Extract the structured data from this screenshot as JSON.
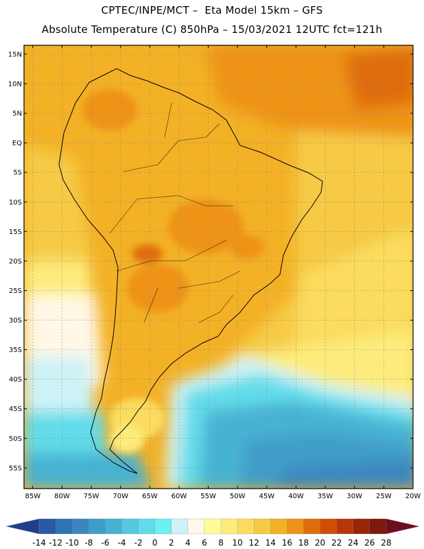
{
  "header": {
    "line1": "CPTEC/INPE/MCT –  Eta Model 15km – GFS",
    "line2": "Absolute Temperature (C) 850hPa – 15/03/2021 12UTC fct=121h"
  },
  "map": {
    "lat_labels": [
      "15N",
      "10N",
      "5N",
      "EQ",
      "5S",
      "10S",
      "15S",
      "20S",
      "25S",
      "30S",
      "35S",
      "40S",
      "45S",
      "50S",
      "55S"
    ],
    "lon_labels": [
      "85W",
      "80W",
      "75W",
      "70W",
      "65W",
      "60W",
      "55W",
      "50W",
      "45W",
      "40W",
      "35W",
      "30W",
      "25W",
      "20W"
    ],
    "lat_range": [
      -58.5,
      16.5
    ],
    "lon_range": [
      -86.5,
      -20
    ]
  },
  "colorbar": {
    "labels": [
      "-14",
      "-12",
      "-10",
      "-8",
      "-6",
      "-4",
      "-2",
      "0",
      "2",
      "4",
      "6",
      "8",
      "10",
      "12",
      "14",
      "16",
      "18",
      "20",
      "22",
      "24",
      "26",
      "28"
    ],
    "colors": [
      "#1f3f8c",
      "#2a5aa6",
      "#2f73b5",
      "#3a87c0",
      "#3f9dc9",
      "#46b3d3",
      "#55c8e0",
      "#62dcea",
      "#6cf0f0",
      "#cdf3f6",
      "#fff8e6",
      "#fffb9a",
      "#fdec7c",
      "#fbdc5e",
      "#f6ca44",
      "#f3b126",
      "#ee9318",
      "#e06d0c",
      "#ce4e06",
      "#b8360a",
      "#9a2408",
      "#7c1a0c",
      "#6e0f20"
    ]
  }
}
